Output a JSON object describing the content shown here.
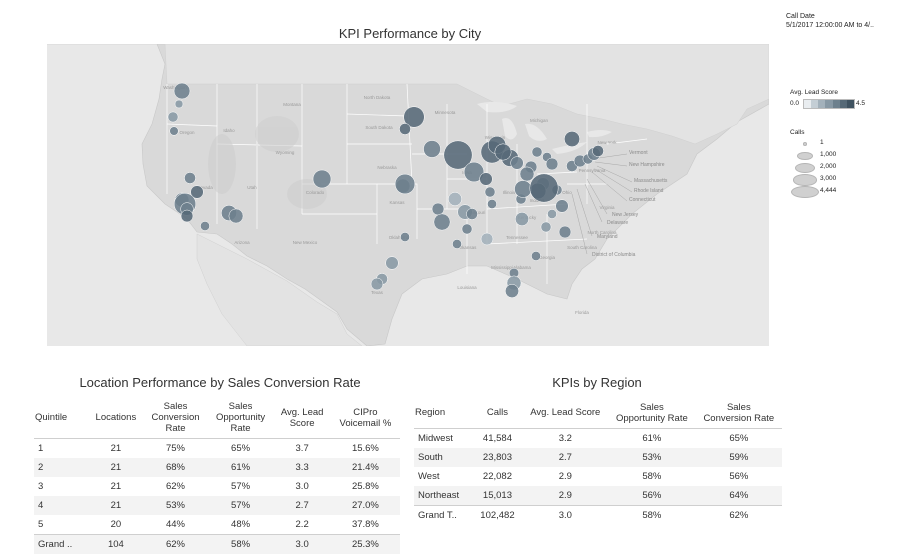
{
  "map": {
    "title": "KPI Performance by City",
    "bubbles": [
      {
        "size": 1200,
        "score": 3.0
      },
      {
        "size": 400,
        "score": 2.6
      },
      {
        "size": 250,
        "score": 3.2
      },
      {
        "size": 200,
        "score": 2.4
      },
      {
        "size": 1600,
        "score": 2.9
      },
      {
        "size": 1100,
        "score": 3.3
      },
      {
        "size": 500,
        "score": 3.0
      },
      {
        "size": 700,
        "score": 3.4
      },
      {
        "size": 900,
        "score": 3.1
      },
      {
        "size": 300,
        "score": 2.8
      },
      {
        "size": 2400,
        "score": 3.0
      },
      {
        "size": 700,
        "score": 3.0
      },
      {
        "size": 600,
        "score": 3.5
      },
      {
        "size": 900,
        "score": 2.8
      },
      {
        "size": 2200,
        "score": 3.6
      },
      {
        "size": 500,
        "score": 3.7
      },
      {
        "size": 1400,
        "score": 3.2
      },
      {
        "size": 4444,
        "score": 3.9
      },
      {
        "size": 2000,
        "score": 3.3
      },
      {
        "size": 2600,
        "score": 3.8
      },
      {
        "size": 1500,
        "score": 3.5
      },
      {
        "size": 1400,
        "score": 3.4
      },
      {
        "size": 700,
        "score": 3.0
      },
      {
        "size": 600,
        "score": 3.2
      },
      {
        "size": 700,
        "score": 3.6
      },
      {
        "size": 1300,
        "score": 3.9
      },
      {
        "size": 400,
        "score": 3.1
      },
      {
        "size": 300,
        "score": 3.0
      },
      {
        "size": 600,
        "score": 3.3
      },
      {
        "size": 1100,
        "score": 3.4
      },
      {
        "size": 700,
        "score": 2.4
      },
      {
        "size": 400,
        "score": 2.8
      },
      {
        "size": 300,
        "score": 2.2
      },
      {
        "size": 700,
        "score": 3.2
      },
      {
        "size": 1200,
        "score": 3.4
      },
      {
        "size": 500,
        "score": 2.7
      },
      {
        "size": 600,
        "score": 3.0
      },
      {
        "size": 400,
        "score": 3.1
      },
      {
        "size": 700,
        "score": 3.3
      },
      {
        "size": 500,
        "score": 3.4
      },
      {
        "size": 800,
        "score": 2.6
      },
      {
        "size": 1400,
        "score": 3.3
      },
      {
        "size": 900,
        "score": 3.0
      },
      {
        "size": 400,
        "score": 2.9
      },
      {
        "size": 4444,
        "score": 3.4
      },
      {
        "size": 400,
        "score": 2.2
      },
      {
        "size": 600,
        "score": 2.8
      },
      {
        "size": 350,
        "score": 2.7
      },
      {
        "size": 300,
        "score": 2.8
      },
      {
        "size": 400,
        "score": 3.0
      },
      {
        "size": 600,
        "score": 3.1
      },
      {
        "size": 900,
        "score": 2.9
      },
      {
        "size": 2000,
        "score": 3.1
      },
      {
        "size": 1300,
        "score": 2.8
      },
      {
        "size": 1000,
        "score": 2.4
      },
      {
        "size": 800,
        "score": 1.8
      },
      {
        "size": 600,
        "score": 1.2
      },
      {
        "size": 300,
        "score": 3.0
      },
      {
        "size": 500,
        "score": 2.6
      },
      {
        "size": 600,
        "score": 2.4
      },
      {
        "size": 700,
        "score": 2.5
      },
      {
        "size": 900,
        "score": 2.5
      },
      {
        "size": 800,
        "score": 3.1
      },
      {
        "size": 300,
        "score": 3.0
      },
      {
        "size": 500,
        "score": 3.2
      },
      {
        "size": 400,
        "score": 2.9
      },
      {
        "size": 300,
        "score": 2.8
      }
    ],
    "state_labels": [
      "Washington",
      "Oregon",
      "Idaho",
      "Montana",
      "Wyoming",
      "Nevada",
      "Utah",
      "Colorado",
      "Arizona",
      "New Mexico",
      "North Dakota",
      "South Dakota",
      "Nebraska",
      "Kansas",
      "Minnesota",
      "Iowa",
      "Missouri",
      "Wisconsin",
      "Michigan",
      "Illinois",
      "Ohio",
      "Texas",
      "Oklahoma",
      "Arkansas",
      "Georgia",
      "Alabama",
      "Mississippi",
      "Tennessee",
      "Kentucky",
      "Indiana",
      "Pennsylvania",
      "New York",
      "Virginia",
      "North Carolina",
      "South Carolina",
      "Florida",
      "Louisiana"
    ],
    "callouts": [
      "Vermont",
      "New Hampshire",
      "Massachusetts",
      "Rhode Island",
      "Connecticut",
      "New Jersey",
      "Delaware",
      "Maryland",
      "District of Columbia"
    ]
  },
  "filter": {
    "label": "Call Date",
    "value": "5/1/2017 12:00:00 AM to 4/.."
  },
  "score_legend": {
    "title": "Avg. Lead Score",
    "min": "0.0",
    "max": "4.5",
    "colors": [
      "#e9edf0",
      "#c4ced5",
      "#a3b1bb",
      "#8798a4",
      "#6d808d",
      "#566977",
      "#3f5260"
    ]
  },
  "calls_legend": {
    "title": "Calls",
    "items": [
      {
        "label": "1",
        "value": 1
      },
      {
        "label": "1,000",
        "value": 1000
      },
      {
        "label": "2,000",
        "value": 2000
      },
      {
        "label": "3,000",
        "value": 3000
      },
      {
        "label": "4,444",
        "value": 4444
      }
    ]
  },
  "location_table": {
    "title": "Location Performance by Sales Conversion Rate",
    "headers": [
      "Quintile",
      "Locations",
      "Sales\nConversion\nRate",
      "Sales\nOpportunity\nRate",
      "Avg. Lead\nScore",
      "CIPro\nVoicemail %"
    ],
    "rows": [
      [
        "1",
        "21",
        "75%",
        "65%",
        "3.7",
        "15.6%"
      ],
      [
        "2",
        "21",
        "68%",
        "61%",
        "3.3",
        "21.4%"
      ],
      [
        "3",
        "21",
        "62%",
        "57%",
        "3.0",
        "25.8%"
      ],
      [
        "4",
        "21",
        "53%",
        "57%",
        "2.7",
        "27.0%"
      ],
      [
        "5",
        "20",
        "44%",
        "48%",
        "2.2",
        "37.8%"
      ],
      [
        "Grand ..",
        "104",
        "62%",
        "58%",
        "3.0",
        "25.3%"
      ]
    ]
  },
  "region_table": {
    "title": "KPIs by Region",
    "headers": [
      "Region",
      "Calls",
      "Avg. Lead Score",
      "Sales\nOpportunity Rate",
      "Sales\nConversion Rate"
    ],
    "rows": [
      [
        "Midwest",
        "41,584",
        "3.2",
        "61%",
        "65%"
      ],
      [
        "South",
        "23,803",
        "2.7",
        "53%",
        "59%"
      ],
      [
        "West",
        "22,082",
        "2.9",
        "58%",
        "56%"
      ],
      [
        "Northeast",
        "15,013",
        "2.9",
        "56%",
        "64%"
      ],
      [
        "Grand T..",
        "102,482",
        "3.0",
        "58%",
        "62%"
      ]
    ]
  }
}
